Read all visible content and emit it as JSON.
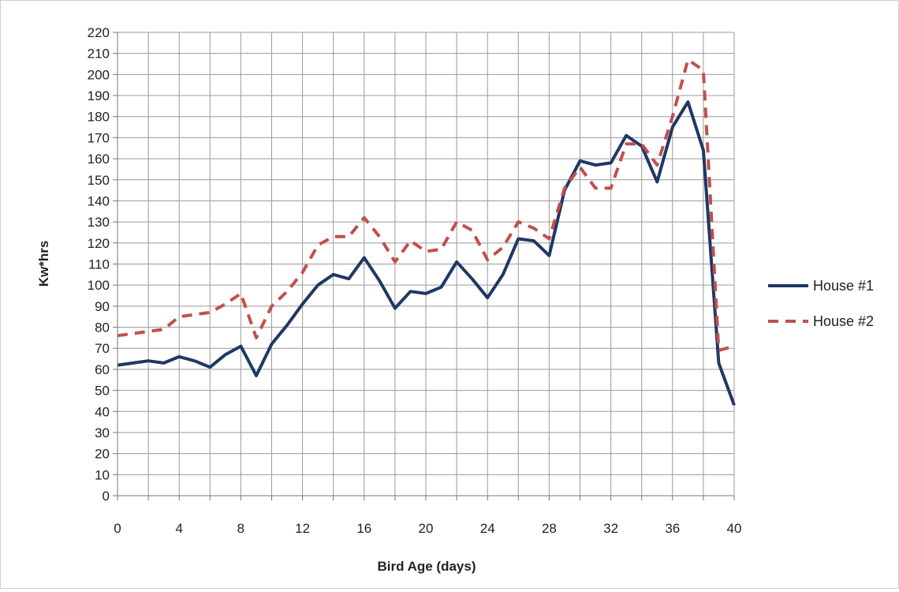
{
  "chart_data": {
    "type": "line",
    "title": "",
    "xlabel": "Bird Age (days)",
    "ylabel": "Kw*hrs",
    "xlim": [
      0,
      40
    ],
    "ylim": [
      0,
      220
    ],
    "x_ticks": [
      0,
      4,
      8,
      12,
      16,
      20,
      24,
      28,
      32,
      36,
      40
    ],
    "y_ticks": [
      0,
      10,
      20,
      30,
      40,
      50,
      60,
      70,
      80,
      90,
      100,
      110,
      120,
      130,
      140,
      150,
      160,
      170,
      180,
      190,
      200,
      210,
      220
    ],
    "grid": true,
    "legend_position": "right",
    "x": [
      0,
      1,
      2,
      3,
      4,
      5,
      6,
      7,
      8,
      9,
      10,
      11,
      12,
      13,
      14,
      15,
      16,
      17,
      18,
      19,
      20,
      21,
      22,
      23,
      24,
      25,
      26,
      27,
      28,
      29,
      30,
      31,
      32,
      33,
      34,
      35,
      36,
      37,
      38,
      39,
      40
    ],
    "series": [
      {
        "name": "House #1",
        "color": "#1f3864",
        "style": "solid",
        "values": [
          62,
          63,
          64,
          63,
          66,
          64,
          61,
          67,
          71,
          57,
          72,
          81,
          91,
          100,
          105,
          103,
          113,
          102,
          89,
          97,
          96,
          99,
          111,
          103,
          94,
          105,
          122,
          121,
          114,
          145,
          159,
          157,
          158,
          171,
          166,
          149,
          175,
          187,
          164,
          63,
          43
        ]
      },
      {
        "name": "House #2",
        "color": "#c0504d",
        "style": "dashed",
        "values": [
          76,
          77,
          78,
          79,
          85,
          86,
          87,
          91,
          96,
          75,
          90,
          97,
          106,
          119,
          123,
          123,
          132,
          123,
          111,
          121,
          116,
          117,
          130,
          126,
          112,
          118,
          130,
          127,
          122,
          146,
          156,
          146,
          146,
          167,
          167,
          157,
          180,
          207,
          202,
          69,
          71
        ]
      }
    ]
  }
}
